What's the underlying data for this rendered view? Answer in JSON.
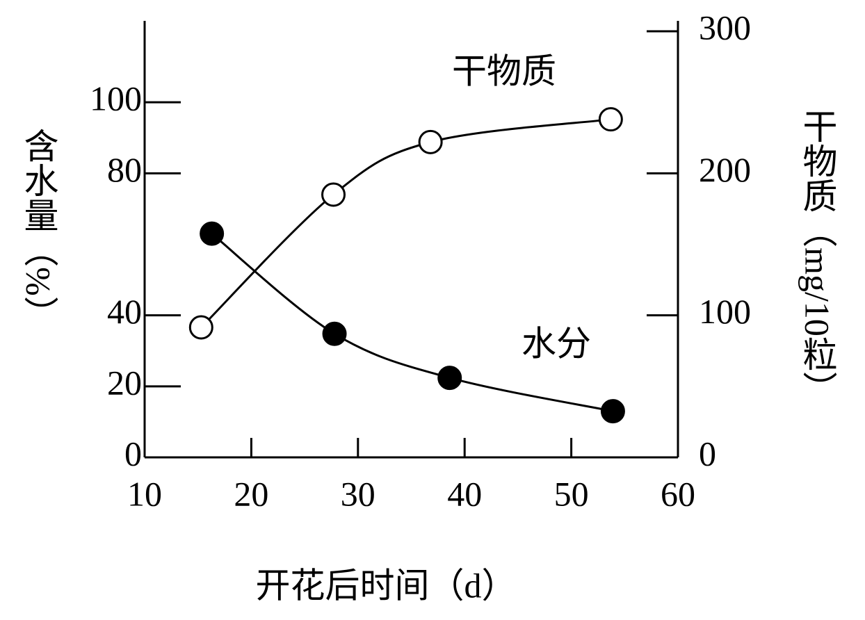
{
  "chart_data": {
    "type": "line",
    "x_label": "开花后时间（d）",
    "y_label": "含水量（%）",
    "y2_label": "干物质（mg/10粒）",
    "xlim": [
      10,
      60
    ],
    "xticks": [
      10,
      20,
      30,
      40,
      50,
      60
    ],
    "ylim": [
      0,
      120
    ],
    "yticks": [
      0,
      20,
      40,
      80,
      100
    ],
    "y2lim": [
      0,
      300
    ],
    "y2ticks": [
      0,
      100,
      200,
      300
    ],
    "series": [
      {
        "name": "水分",
        "color": "#000000",
        "marker": "filled",
        "x": [
          16.3,
          27.8,
          38.6,
          53.9
        ],
        "values": [
          63,
          34.8,
          22.4,
          13
        ]
      },
      {
        "name": "干物质",
        "color": "#000000",
        "marker": "open",
        "axis": "y2",
        "x": [
          15.3,
          27.7,
          36.8,
          53.7
        ],
        "values": [
          91.5,
          185,
          222,
          238
        ]
      }
    ]
  }
}
